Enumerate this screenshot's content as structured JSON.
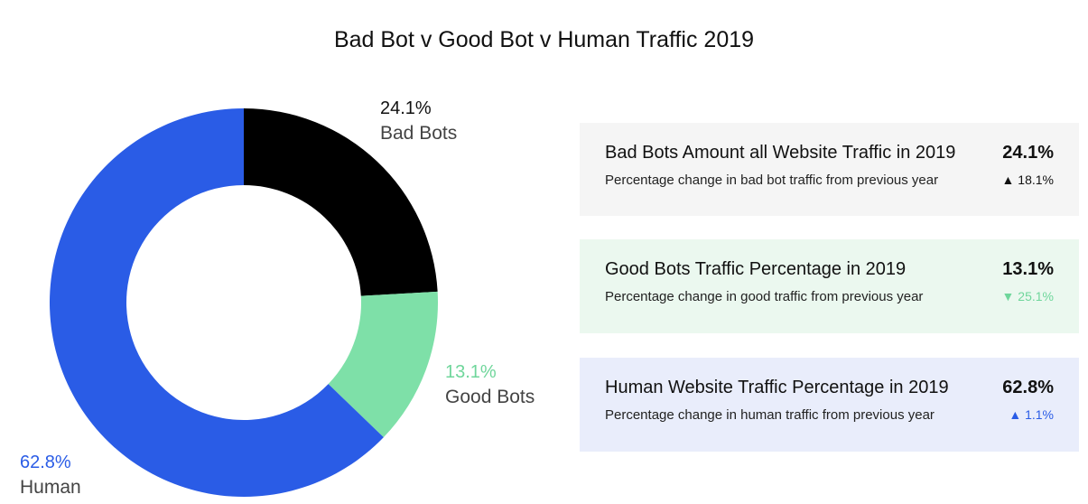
{
  "chart_data": {
    "type": "pie",
    "title": "Bad Bot v Good Bot v Human Traffic 2019",
    "slices": [
      {
        "label": "Bad Bots",
        "value": 24.1,
        "display": "24.1%",
        "color": "#000000"
      },
      {
        "label": "Good Bots",
        "value": 13.1,
        "display": "13.1%",
        "color": "#7ee0a8"
      },
      {
        "label": "Human",
        "value": 62.8,
        "display": "62.8%",
        "color": "#2a5ce6"
      }
    ]
  },
  "cards": [
    {
      "title": "Bad Bots Amount all Website Traffic in 2019",
      "value": "24.1%",
      "subtitle": "Percentage change in bad bot traffic from previous year",
      "change_arrow": "▲",
      "change": "18.1%",
      "change_color": "#111111",
      "bg": "#f5f5f5"
    },
    {
      "title": "Good Bots Traffic Percentage in 2019",
      "value": "13.1%",
      "subtitle": "Percentage change in good traffic from previous year",
      "change_arrow": "▼",
      "change": "25.1%",
      "change_color": "#6fd69b",
      "bg": "#ebf8ef"
    },
    {
      "title": "Human Website Traffic Percentage in 2019",
      "value": "62.8%",
      "subtitle": "Percentage change in human traffic from previous year",
      "change_arrow": "▲",
      "change": "1.1%",
      "change_color": "#2a5ce6",
      "bg": "#e9edfb"
    }
  ]
}
